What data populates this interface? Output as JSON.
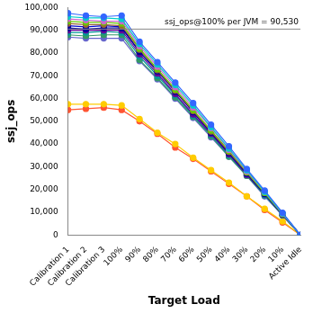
{
  "chart_data": {
    "type": "line",
    "x_label": "Target Load",
    "y_label": "ssj_ops",
    "categories": [
      "Calibration 1",
      "Calibration 2",
      "Calibration 3",
      "100%",
      "90%",
      "80%",
      "70%",
      "60%",
      "50%",
      "40%",
      "30%",
      "20%",
      "10%",
      "Active Idle"
    ],
    "ylim": [
      0,
      100000
    ],
    "yticks": [
      0,
      {
        "value": 10000,
        "label": "10,000"
      },
      {
        "value": 20000,
        "label": "20,000"
      },
      {
        "value": 30000,
        "label": "30,000"
      },
      {
        "value": 40000,
        "label": "40,000"
      },
      {
        "value": 50000,
        "label": "50,000"
      },
      {
        "value": 60000,
        "label": "60,000"
      },
      {
        "value": 70000,
        "label": "70,000"
      },
      {
        "value": 80000,
        "label": "80,000"
      },
      {
        "value": 90000,
        "label": "90,000"
      },
      {
        "value": 100000,
        "label": "100,000"
      }
    ],
    "grid": false,
    "marker": "circle",
    "annotations": [
      {
        "y": 90530,
        "label": "ssj_ops@100% per JVM = 90,530"
      }
    ],
    "series": [
      {
        "color": "#3366ff",
        "values": [
          97500,
          96500,
          96000,
          96500,
          85000,
          76000,
          67000,
          58000,
          48500,
          39000,
          29000,
          19500,
          9800,
          0
        ]
      },
      {
        "color": "#00cccc",
        "values": [
          96000,
          95500,
          95500,
          95000,
          84000,
          75000,
          66000,
          57000,
          47500,
          38000,
          28500,
          19000,
          9500,
          0
        ]
      },
      {
        "color": "#cc66cc",
        "values": [
          95000,
          94500,
          94000,
          94000,
          83000,
          74000,
          65000,
          56000,
          47000,
          37500,
          28000,
          19000,
          9400,
          0
        ]
      },
      {
        "color": "#66cc00",
        "values": [
          94000,
          93500,
          93500,
          93000,
          82000,
          73000,
          64000,
          55000,
          46000,
          37000,
          27500,
          18500,
          9300,
          0
        ]
      },
      {
        "color": "#996633",
        "values": [
          93000,
          92500,
          92500,
          92000,
          81500,
          72500,
          63500,
          54500,
          45500,
          36500,
          27500,
          18500,
          9200,
          0
        ]
      },
      {
        "color": "#000099",
        "values": [
          91000,
          90500,
          91000,
          91000,
          80500,
          72000,
          63000,
          54000,
          45000,
          36000,
          27000,
          18000,
          9000,
          0
        ]
      },
      {
        "color": "#660099",
        "values": [
          90000,
          90000,
          90000,
          90000,
          79500,
          71000,
          62000,
          53000,
          44500,
          35500,
          26500,
          18000,
          8900,
          0
        ]
      },
      {
        "color": "#009999",
        "values": [
          89000,
          89000,
          89500,
          89000,
          78500,
          70000,
          61500,
          52500,
          44000,
          35000,
          26500,
          17500,
          8800,
          0
        ]
      },
      {
        "color": "#339966",
        "values": [
          88000,
          87500,
          88000,
          88000,
          77000,
          69000,
          60500,
          52000,
          43500,
          34500,
          26000,
          17500,
          8700,
          0
        ]
      },
      {
        "color": "#6666cc",
        "values": [
          87000,
          86500,
          86500,
          86500,
          76500,
          68500,
          60000,
          51500,
          43000,
          34500,
          26000,
          17000,
          8600,
          0
        ]
      },
      {
        "color": "#0000cc",
        "values": [
          92000,
          91500,
          92000,
          91500,
          80500,
          72000,
          63500,
          54000,
          45000,
          36500,
          27500,
          18500,
          9200,
          0
        ]
      },
      {
        "color": "#ffcc00",
        "values": [
          57500,
          57500,
          57500,
          57000,
          51000,
          45000,
          40000,
          34000,
          28500,
          23000,
          17000,
          11500,
          6000,
          0
        ]
      },
      {
        "color": "#ff5533",
        "values": [
          55000,
          55500,
          56000,
          55000,
          50000,
          44500,
          38500,
          33500,
          28000,
          22500,
          17000,
          11000,
          5500,
          0
        ]
      }
    ]
  }
}
